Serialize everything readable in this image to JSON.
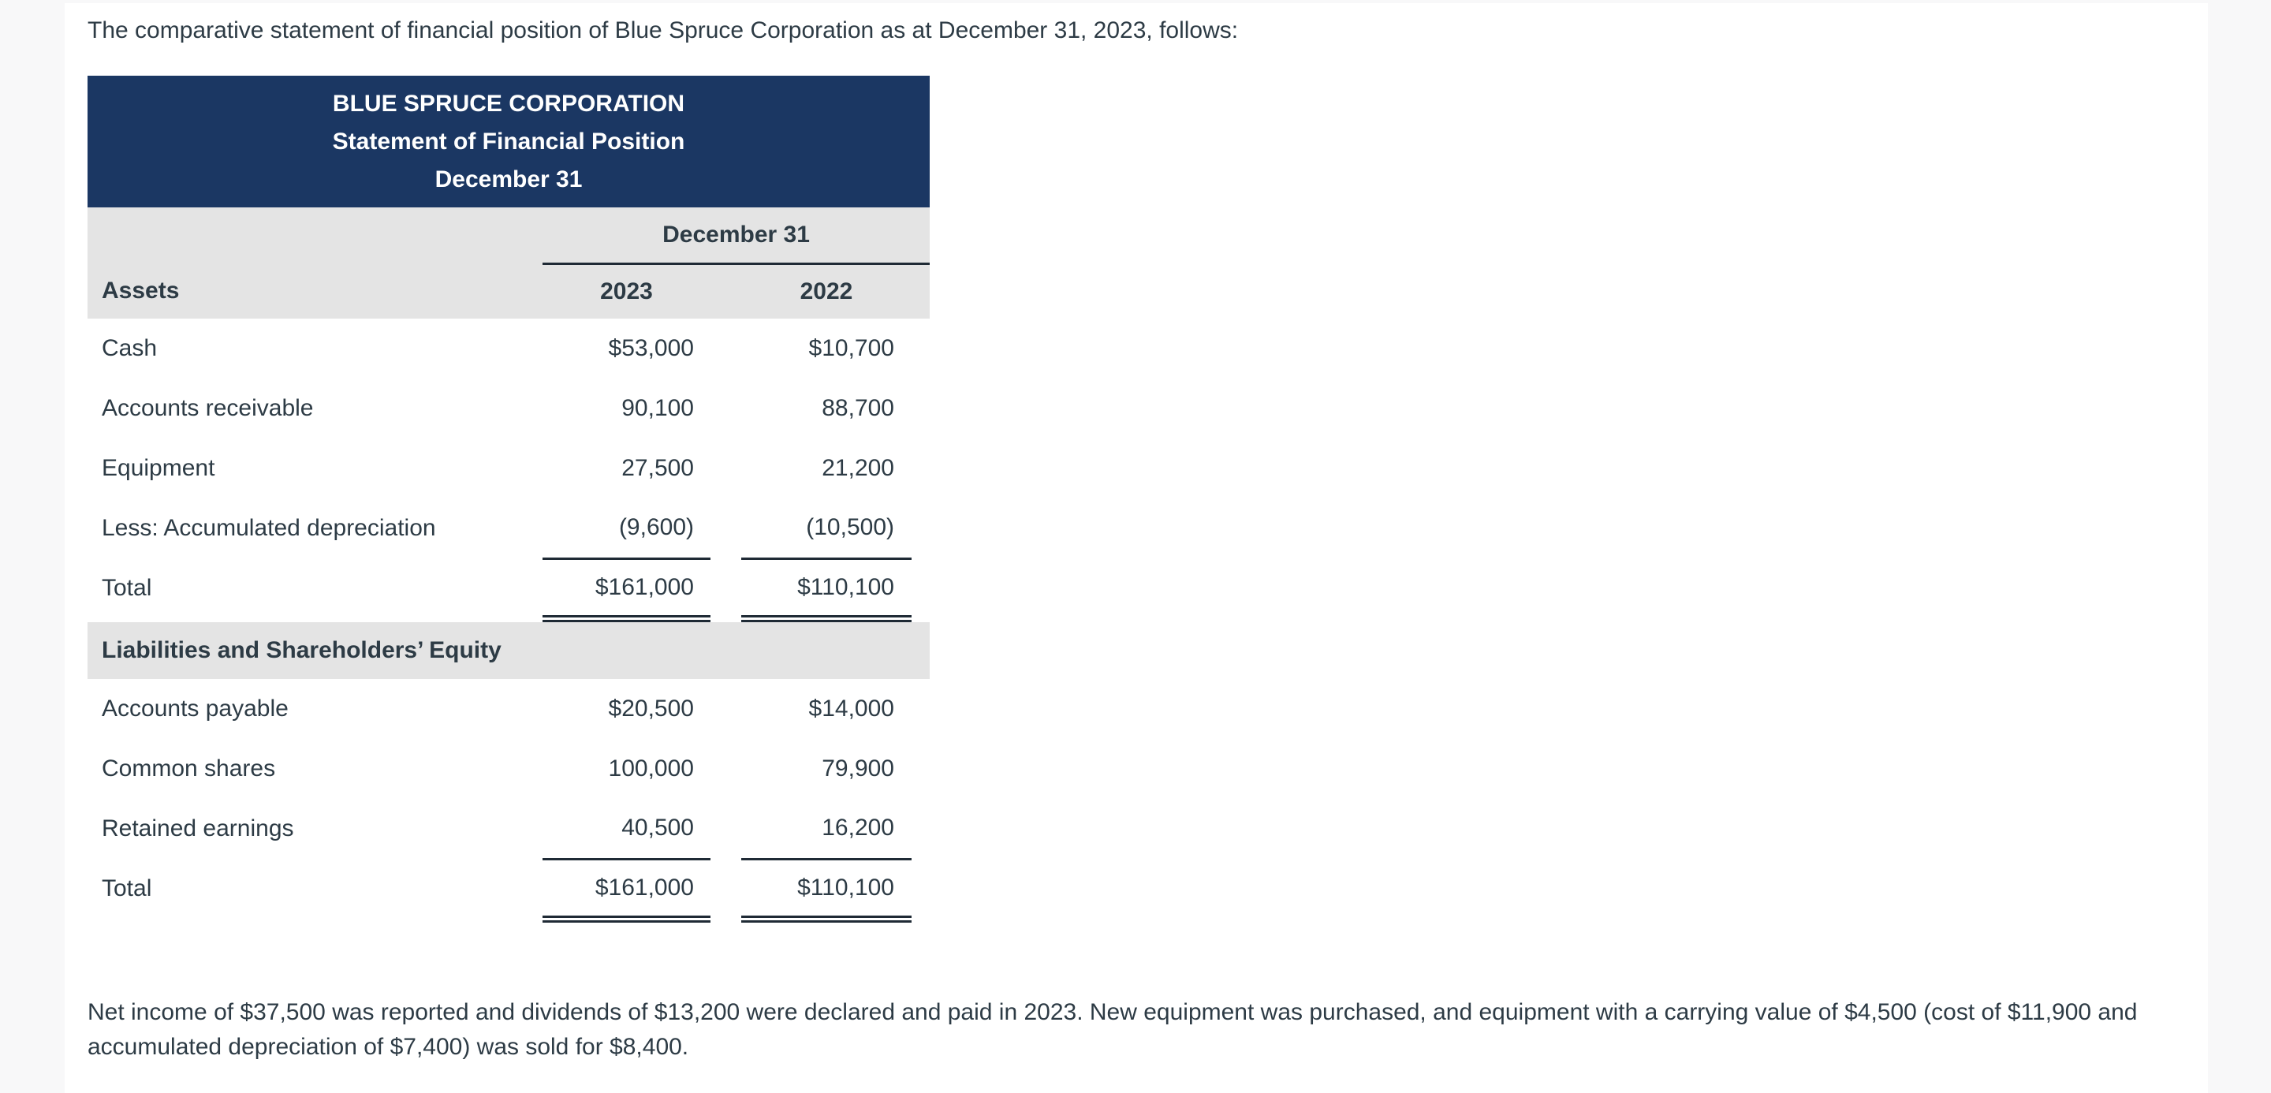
{
  "page": {
    "intro_text": "The comparative statement of financial position of Blue Spruce Corporation as at December 31, 2023, follows:",
    "footer_text": "Net income of $37,500 was reported and dividends of $13,200 were declared and paid in 2023. New equipment was purchased, and equipment with a carrying value of $4,500 (cost of $11,900 and accumulated depreciation of $7,400) was sold for $8,400."
  },
  "statement": {
    "header": {
      "company": "BLUE SPRUCE CORPORATION",
      "title": "Statement of Financial Position",
      "date_line": "December 31"
    },
    "column_group_label": "December 31",
    "columns": [
      "2023",
      "2022"
    ],
    "sections": [
      {
        "label": "Assets",
        "rows": [
          {
            "label": "Cash",
            "y2023": "$53,000",
            "y2022": "$10,700",
            "underline": "none"
          },
          {
            "label": "Accounts receivable",
            "y2023": "90,100",
            "y2022": "88,700",
            "underline": "none"
          },
          {
            "label": "Equipment",
            "y2023": "27,500",
            "y2022": "21,200",
            "underline": "none"
          },
          {
            "label": "Less: Accumulated depreciation",
            "y2023": "(9,600)",
            "y2022": "(10,500)",
            "underline": "single"
          },
          {
            "label": "Total",
            "y2023": "$161,000",
            "y2022": "$110,100",
            "underline": "double"
          }
        ]
      },
      {
        "label": "Liabilities and Shareholders’ Equity",
        "rows": [
          {
            "label": "Accounts payable",
            "y2023": "$20,500",
            "y2022": "$14,000",
            "underline": "none"
          },
          {
            "label": "Common shares",
            "y2023": "100,000",
            "y2022": "79,900",
            "underline": "none"
          },
          {
            "label": "Retained earnings",
            "y2023": "40,500",
            "y2022": "16,200",
            "underline": "single"
          },
          {
            "label": "Total",
            "y2023": "$161,000",
            "y2022": "$110,100",
            "underline": "double"
          }
        ]
      }
    ]
  },
  "colors": {
    "page_background": "#f8f8f9",
    "card_background": "#ffffff",
    "table_header_background": "#1b3763",
    "table_header_text": "#ffffff",
    "section_band_background": "#e4e4e4",
    "body_text": "#2d3b45",
    "rule_lines": "#1f2a35"
  }
}
